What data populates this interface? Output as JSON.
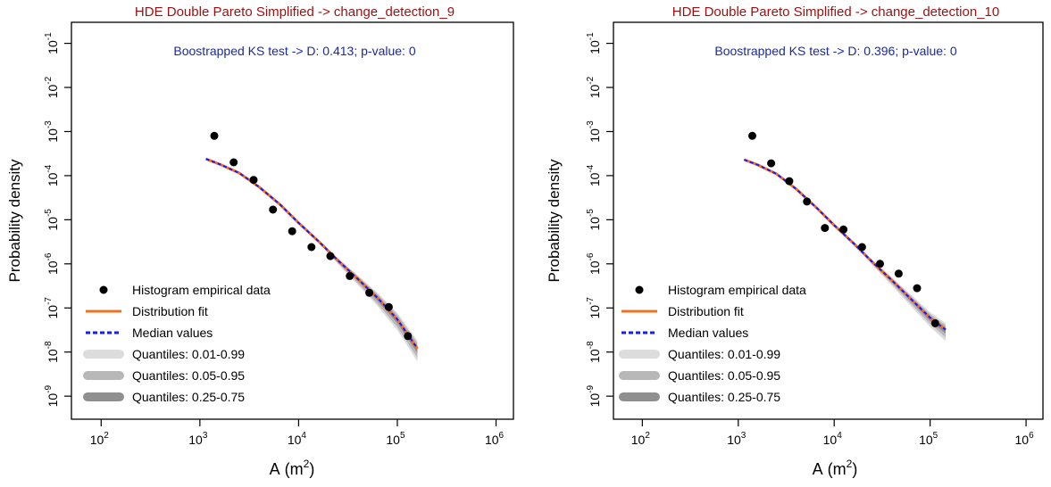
{
  "chart_data": [
    {
      "type": "scatter",
      "title": "HDE Double Pareto Simplified -> change_detection_9",
      "annotation": "Boostrapped KS test -> D: 0.413; p-value: 0",
      "xlabel_main": "A",
      "xlabel_unit_base": "m",
      "xlabel_unit_exp": "2",
      "ylabel": "Probability density",
      "x_scale": "log",
      "y_scale": "log",
      "xlim": [
        50,
        1500000
      ],
      "ylim": [
        3e-10,
        0.3
      ],
      "x_ticks": [
        {
          "base": "10",
          "exp": "2",
          "value": 100
        },
        {
          "base": "10",
          "exp": "3",
          "value": 1000
        },
        {
          "base": "10",
          "exp": "4",
          "value": 10000
        },
        {
          "base": "10",
          "exp": "5",
          "value": 100000
        },
        {
          "base": "10",
          "exp": "6",
          "value": 1000000
        }
      ],
      "y_ticks": [
        {
          "base": "10",
          "exp": "-1",
          "value": 0.1
        },
        {
          "base": "10",
          "exp": "-2",
          "value": 0.01
        },
        {
          "base": "10",
          "exp": "-3",
          "value": 0.001
        },
        {
          "base": "10",
          "exp": "-4",
          "value": 0.0001
        },
        {
          "base": "10",
          "exp": "-5",
          "value": 1e-05
        },
        {
          "base": "10",
          "exp": "-6",
          "value": 1e-06
        },
        {
          "base": "10",
          "exp": "-7",
          "value": 1e-07
        },
        {
          "base": "10",
          "exp": "-8",
          "value": 1e-08
        },
        {
          "base": "10",
          "exp": "-9",
          "value": 1e-09
        }
      ],
      "legend_position": "bottom-left",
      "legend": [
        {
          "label": "Histogram empirical data",
          "symbol": "point"
        },
        {
          "label": "Distribution fit",
          "symbol": "line"
        },
        {
          "label": "Median values",
          "symbol": "dashed"
        },
        {
          "label": "Quantiles: 0.01-0.99",
          "symbol": "band-light"
        },
        {
          "label": "Quantiles: 0.05-0.95",
          "symbol": "band-mid"
        },
        {
          "label": "Quantiles: 0.25-0.75",
          "symbol": "band-dark"
        }
      ],
      "empirical_points": [
        {
          "x": 1400,
          "y": 0.0008
        },
        {
          "x": 2200,
          "y": 0.0002
        },
        {
          "x": 3500,
          "y": 8e-05
        },
        {
          "x": 5500,
          "y": 1.7e-05
        },
        {
          "x": 8600,
          "y": 5.5e-06
        },
        {
          "x": 13500,
          "y": 2.4e-06
        },
        {
          "x": 21000,
          "y": 1.5e-06
        },
        {
          "x": 33000,
          "y": 5.3e-07
        },
        {
          "x": 52000,
          "y": 2.2e-07
        },
        {
          "x": 82000,
          "y": 1.05e-07
        },
        {
          "x": 128000,
          "y": 2.3e-08
        }
      ],
      "fit_curve": [
        {
          "x": 1150,
          "y": 0.00024
        },
        {
          "x": 1600,
          "y": 0.00018
        },
        {
          "x": 2500,
          "y": 0.000115
        },
        {
          "x": 4000,
          "y": 5.5e-05
        },
        {
          "x": 6500,
          "y": 2.2e-05
        },
        {
          "x": 10000,
          "y": 8.5e-06
        },
        {
          "x": 16000,
          "y": 3.2e-06
        },
        {
          "x": 25000,
          "y": 1.2e-06
        },
        {
          "x": 40000,
          "y": 4.5e-07
        },
        {
          "x": 63000,
          "y": 1.7e-07
        },
        {
          "x": 100000,
          "y": 5.5e-08
        },
        {
          "x": 160000,
          "y": 1.2e-08
        }
      ],
      "band_widths_decades": {
        "q01_99": 0.35,
        "q05_95": 0.25,
        "q25_75": 0.12
      }
    },
    {
      "type": "scatter",
      "title": "HDE Double Pareto Simplified -> change_detection_10",
      "annotation": "Boostrapped KS test -> D: 0.396; p-value: 0",
      "xlabel_main": "A",
      "xlabel_unit_base": "m",
      "xlabel_unit_exp": "2",
      "ylabel": "Probability density",
      "x_scale": "log",
      "y_scale": "log",
      "xlim": [
        50,
        1500000
      ],
      "ylim": [
        3e-10,
        0.3
      ],
      "x_ticks": [
        {
          "base": "10",
          "exp": "2",
          "value": 100
        },
        {
          "base": "10",
          "exp": "3",
          "value": 1000
        },
        {
          "base": "10",
          "exp": "4",
          "value": 10000
        },
        {
          "base": "10",
          "exp": "5",
          "value": 100000
        },
        {
          "base": "10",
          "exp": "6",
          "value": 1000000
        }
      ],
      "y_ticks": [
        {
          "base": "10",
          "exp": "-1",
          "value": 0.1
        },
        {
          "base": "10",
          "exp": "-2",
          "value": 0.01
        },
        {
          "base": "10",
          "exp": "-3",
          "value": 0.001
        },
        {
          "base": "10",
          "exp": "-4",
          "value": 0.0001
        },
        {
          "base": "10",
          "exp": "-5",
          "value": 1e-05
        },
        {
          "base": "10",
          "exp": "-6",
          "value": 1e-06
        },
        {
          "base": "10",
          "exp": "-7",
          "value": 1e-07
        },
        {
          "base": "10",
          "exp": "-8",
          "value": 1e-08
        },
        {
          "base": "10",
          "exp": "-9",
          "value": 1e-09
        }
      ],
      "legend_position": "bottom-left",
      "legend": [
        {
          "label": "Histogram empirical data",
          "symbol": "point"
        },
        {
          "label": "Distribution fit",
          "symbol": "line"
        },
        {
          "label": "Median values",
          "symbol": "dashed"
        },
        {
          "label": "Quantiles: 0.01-0.99",
          "symbol": "band-light"
        },
        {
          "label": "Quantiles: 0.05-0.95",
          "symbol": "band-mid"
        },
        {
          "label": "Quantiles: 0.25-0.75",
          "symbol": "band-dark"
        }
      ],
      "empirical_points": [
        {
          "x": 1400,
          "y": 0.0008
        },
        {
          "x": 2200,
          "y": 0.00019
        },
        {
          "x": 3400,
          "y": 7.5e-05
        },
        {
          "x": 5200,
          "y": 2.6e-05
        },
        {
          "x": 8000,
          "y": 6.5e-06
        },
        {
          "x": 12500,
          "y": 6e-06
        },
        {
          "x": 19500,
          "y": 2.4e-06
        },
        {
          "x": 30000,
          "y": 1e-06
        },
        {
          "x": 47000,
          "y": 6e-07
        },
        {
          "x": 73000,
          "y": 2.8e-07
        },
        {
          "x": 113000,
          "y": 4.5e-08
        }
      ],
      "fit_curve": [
        {
          "x": 1150,
          "y": 0.00023
        },
        {
          "x": 1600,
          "y": 0.000175
        },
        {
          "x": 2500,
          "y": 0.00011
        },
        {
          "x": 4000,
          "y": 5e-05
        },
        {
          "x": 6500,
          "y": 1.9e-05
        },
        {
          "x": 10000,
          "y": 7.5e-06
        },
        {
          "x": 16000,
          "y": 2.9e-06
        },
        {
          "x": 25000,
          "y": 1.1e-06
        },
        {
          "x": 40000,
          "y": 4.2e-07
        },
        {
          "x": 63000,
          "y": 1.6e-07
        },
        {
          "x": 100000,
          "y": 6e-08
        },
        {
          "x": 145000,
          "y": 3.2e-08
        }
      ],
      "band_widths_decades": {
        "q01_99": 0.3,
        "q05_95": 0.2,
        "q25_75": 0.1
      }
    }
  ],
  "colors": {
    "title": "#9b1111",
    "annotation": "#1a2aa0",
    "fit": "#f07020",
    "median": "#1a1aff",
    "band_light": "#dcdcdc",
    "band_mid": "#b8b8b8",
    "band_dark": "#8f8f8f",
    "points": "#000000",
    "axis": "#000000"
  }
}
